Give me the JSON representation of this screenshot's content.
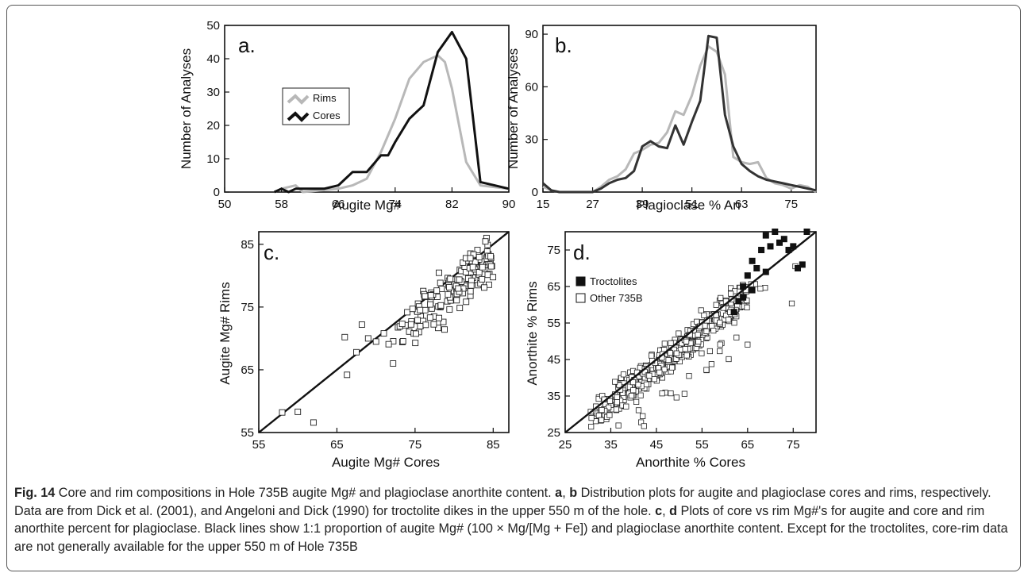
{
  "chart_data": [
    {
      "id": "a",
      "type": "line",
      "panel_label": "a.",
      "xlabel": "Augite Mg#",
      "ylabel": "Number of Analyses",
      "xlim": [
        50,
        90
      ],
      "ylim": [
        0,
        50
      ],
      "xticks": [
        50,
        58,
        66,
        74,
        82,
        90
      ],
      "yticks": [
        0,
        10,
        20,
        30,
        40,
        50
      ],
      "legend_position": "center-left",
      "series": [
        {
          "name": "Rims",
          "color": "#b8b8b8",
          "x": [
            57,
            58,
            60,
            61,
            66,
            68,
            70,
            72,
            74,
            76,
            78,
            80,
            81,
            82,
            84,
            86,
            90
          ],
          "y": [
            0,
            1,
            2,
            0,
            1,
            2,
            4,
            12,
            22,
            34,
            39,
            41,
            39,
            31,
            9,
            2,
            1
          ]
        },
        {
          "name": "Cores",
          "color": "#111111",
          "x": [
            57,
            58,
            59,
            60,
            61,
            62,
            64,
            66,
            68,
            70,
            72,
            73,
            74,
            76,
            77,
            78,
            80,
            82,
            84,
            86,
            88,
            90
          ],
          "y": [
            0,
            1,
            0,
            1,
            1,
            1,
            1,
            2,
            6,
            6,
            11,
            11,
            15,
            22,
            24,
            26,
            42,
            48,
            40,
            3,
            2,
            1
          ]
        }
      ]
    },
    {
      "id": "b",
      "type": "line",
      "panel_label": "b.",
      "xlabel": "Plagioclase % An",
      "ylabel": "Number of Analyses",
      "xlim": [
        15,
        81
      ],
      "ylim": [
        0,
        95
      ],
      "xticks": [
        15,
        27,
        39,
        51,
        63,
        75
      ],
      "yticks": [
        0,
        30,
        60,
        90
      ],
      "series": [
        {
          "name": "",
          "color": "#b8b8b8",
          "x": [
            15,
            17,
            19,
            21,
            27,
            29,
            31,
            33,
            35,
            37,
            39,
            41,
            43,
            45,
            47,
            49,
            51,
            53,
            55,
            57,
            59,
            61,
            63,
            65,
            67,
            69,
            71,
            73,
            75,
            77,
            79,
            81
          ],
          "y": [
            3,
            1,
            0,
            0,
            0,
            3,
            7,
            9,
            13,
            22,
            24,
            27,
            28,
            34,
            46,
            44,
            55,
            72,
            83,
            80,
            67,
            20,
            17,
            16,
            17,
            8,
            5,
            4,
            2,
            4,
            3,
            0
          ]
        },
        {
          "name": "",
          "color": "#333333",
          "x": [
            15,
            17,
            19,
            21,
            25,
            27,
            29,
            31,
            33,
            35,
            37,
            39,
            41,
            43,
            45,
            47,
            49,
            51,
            53,
            55,
            57,
            59,
            61,
            63,
            65,
            67,
            69,
            71,
            73,
            75,
            77,
            79,
            81
          ],
          "y": [
            5,
            1,
            0,
            0,
            0,
            0,
            2,
            5,
            7,
            8,
            12,
            26,
            29,
            26,
            25,
            38,
            27,
            40,
            52,
            89,
            88,
            44,
            26,
            16,
            12,
            9,
            7,
            6,
            5,
            4,
            3,
            2,
            1
          ]
        }
      ]
    },
    {
      "id": "c",
      "type": "scatter",
      "panel_label": "c.",
      "xlabel": "Augite Mg# Cores",
      "ylabel": "Augite Mg# Rims",
      "xlim": [
        55,
        87
      ],
      "ylim": [
        55,
        87
      ],
      "xticks": [
        55,
        65,
        75,
        85
      ],
      "yticks": [
        55,
        65,
        75,
        85
      ],
      "reference_line": [
        [
          55,
          55
        ],
        [
          87,
          87
        ]
      ],
      "points_visible": 180
    },
    {
      "id": "d",
      "type": "scatter",
      "panel_label": "d.",
      "xlabel": "Anorthite % Cores",
      "ylabel": "Anorthite % Rims",
      "xlim": [
        25,
        80
      ],
      "ylim": [
        25,
        80
      ],
      "xticks": [
        25,
        35,
        45,
        55,
        65,
        75
      ],
      "yticks": [
        25,
        35,
        45,
        55,
        65,
        75
      ],
      "legend_position": "top-left",
      "reference_line": [
        [
          25,
          25
        ],
        [
          80,
          80
        ]
      ],
      "series": [
        {
          "name": "Troctolites",
          "marker": "filled-square",
          "color": "#111111",
          "points": [
            [
              62,
              58
            ],
            [
              63,
              61
            ],
            [
              64,
              65
            ],
            [
              65,
              68
            ],
            [
              66,
              72
            ],
            [
              67,
              70
            ],
            [
              68,
              75
            ],
            [
              69,
              79
            ],
            [
              70,
              76
            ],
            [
              71,
              80
            ],
            [
              72,
              77
            ],
            [
              73,
              78
            ],
            [
              74,
              75
            ],
            [
              75,
              76
            ],
            [
              76,
              70
            ],
            [
              77,
              71
            ],
            [
              78,
              80
            ],
            [
              69,
              69
            ],
            [
              66,
              64
            ],
            [
              64,
              62
            ]
          ]
        },
        {
          "name": "Other 735B",
          "marker": "open-square",
          "color": "#111111",
          "points_visible": 480
        }
      ]
    }
  ],
  "caption": {
    "fig_label": "Fig. 14",
    "title": " Core and rim compositions in Hole 735B augite Mg# and plagioclase anorthite content. ",
    "s1_a": "a",
    "s1_sep": ", ",
    "s1_b": "b",
    "s1_text": " Distribution plots for augite and plagioclase cores and rims, respectively. Data are from Dick et al. (2001), and Angeloni and Dick (1990) for troctolite dikes in the upper 550 m of the hole. ",
    "s2_c": "c",
    "s2_sep": ", ",
    "s2_d": "d",
    "s2_text": " Plots of core vs rim Mg#'s for augite and core and rim anorthite percent for plagioclase. Black lines show 1:1 proportion of augite Mg# (100 × Mg/[Mg + Fe]) and plagioclase anorthite content. Except for the troctolites, core-rim data are not generally available for the upper 550 m of Hole 735B"
  }
}
